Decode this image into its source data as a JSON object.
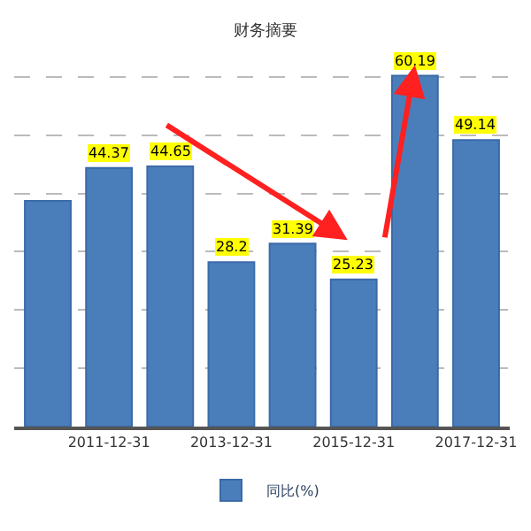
{
  "chart_data": {
    "type": "bar",
    "title": "财务摘要",
    "categories": [
      null,
      "2011-12-31",
      null,
      "2013-12-31",
      null,
      "2015-12-31",
      null,
      "2017-12-31"
    ],
    "series": [
      {
        "name": "同比(%)",
        "color": "#4a7ebb",
        "values": [
          38.7,
          44.37,
          44.65,
          28.2,
          31.39,
          25.23,
          60.19,
          49.14
        ],
        "value_labels": [
          null,
          "44.37",
          "44.65",
          "28.2",
          "31.39",
          "25.23",
          "60.19",
          "49.14"
        ]
      }
    ],
    "grid": "y",
    "legend": "bottom",
    "tick_labels": "x"
  }
}
